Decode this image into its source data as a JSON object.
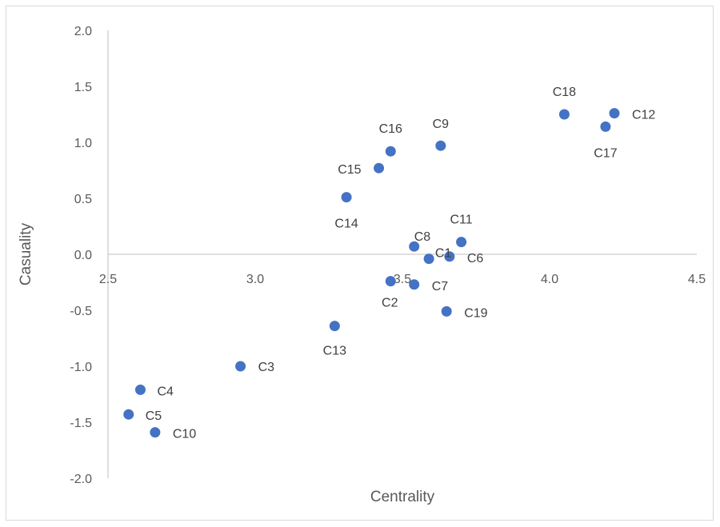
{
  "chart_data": {
    "type": "scatter",
    "xlabel": "Centrality",
    "ylabel": "Casuality",
    "xlim": [
      2.5,
      4.5
    ],
    "ylim": [
      -2.0,
      2.0
    ],
    "x_ticks": [
      "2.5",
      "3.0",
      "3.5",
      "4.0",
      "4.5"
    ],
    "y_ticks": [
      "2.0",
      "1.5",
      "1.0",
      "0.5",
      "0.0",
      "-0.5",
      "-1.0",
      "-1.5",
      "-2.0"
    ],
    "grid": false,
    "legend": "none",
    "marker_color": "#4472c4",
    "points": [
      {
        "label": "C1",
        "x": 3.59,
        "y": -0.04
      },
      {
        "label": "C2",
        "x": 3.46,
        "y": -0.24
      },
      {
        "label": "C3",
        "x": 2.95,
        "y": -1.0
      },
      {
        "label": "C4",
        "x": 2.61,
        "y": -1.21
      },
      {
        "label": "C5",
        "x": 2.57,
        "y": -1.43
      },
      {
        "label": "C6",
        "x": 3.66,
        "y": -0.02
      },
      {
        "label": "C7",
        "x": 3.54,
        "y": -0.27
      },
      {
        "label": "C8",
        "x": 3.54,
        "y": 0.07
      },
      {
        "label": "C9",
        "x": 3.63,
        "y": 0.97
      },
      {
        "label": "C10",
        "x": 2.66,
        "y": -1.59
      },
      {
        "label": "C11",
        "x": 3.7,
        "y": 0.11
      },
      {
        "label": "C12",
        "x": 4.22,
        "y": 1.26
      },
      {
        "label": "C13",
        "x": 3.27,
        "y": -0.64
      },
      {
        "label": "C14",
        "x": 3.31,
        "y": 0.51
      },
      {
        "label": "C15",
        "x": 3.42,
        "y": 0.77
      },
      {
        "label": "C16",
        "x": 3.46,
        "y": 0.92
      },
      {
        "label": "C17",
        "x": 4.19,
        "y": 1.14
      },
      {
        "label": "C18",
        "x": 4.05,
        "y": 1.25
      },
      {
        "label": "C19",
        "x": 3.65,
        "y": -0.51
      }
    ]
  }
}
